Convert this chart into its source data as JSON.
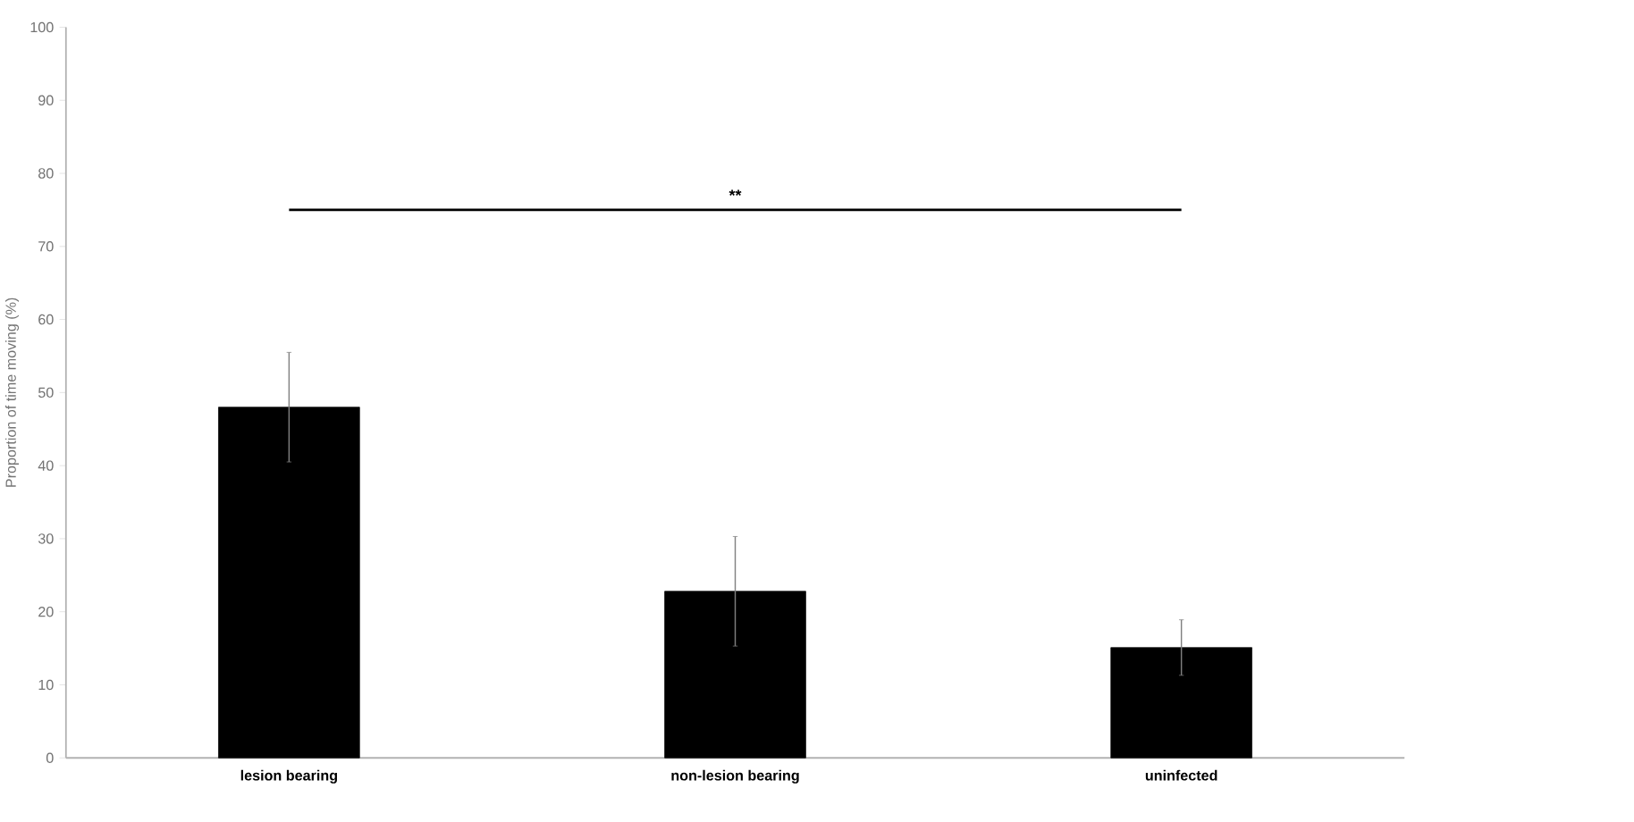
{
  "chart_data": {
    "type": "bar",
    "ylabel": "Proportion of time moving (%)",
    "categories": [
      "lesion bearing",
      "non-lesion bearing",
      "uninfected"
    ],
    "values": [
      48,
      22.8,
      15.1
    ],
    "errors": [
      7.5,
      7.5,
      3.8
    ],
    "color": "#000000",
    "ylim": [
      0,
      100
    ],
    "yticks": [
      0,
      10,
      20,
      30,
      40,
      50,
      60,
      70,
      80,
      90,
      100
    ],
    "grid": false,
    "annotations": [
      "**"
    ]
  }
}
